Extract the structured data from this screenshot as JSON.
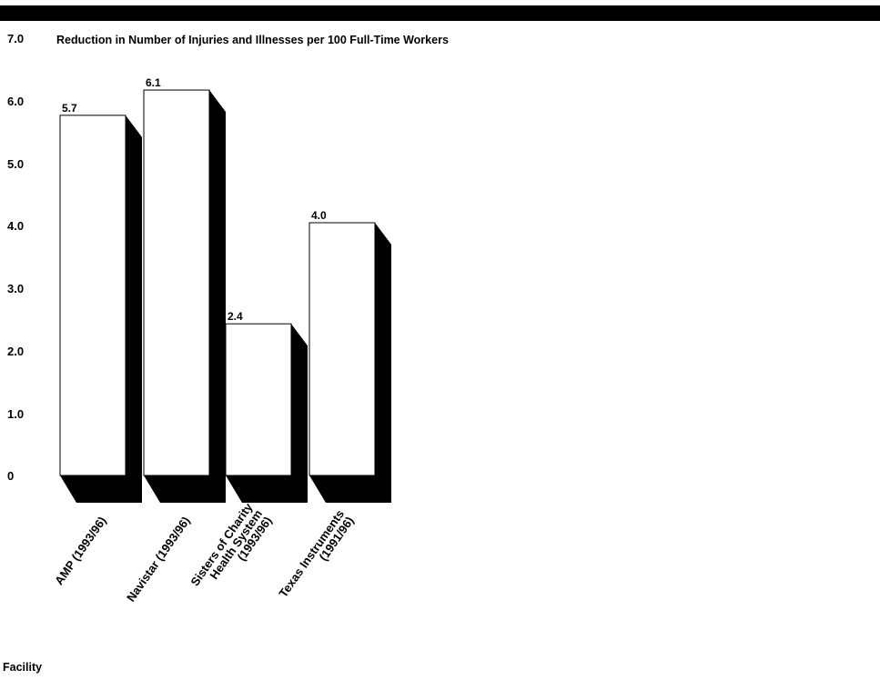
{
  "chart_data": {
    "type": "bar",
    "title": "Reduction in Number of Injuries and Illnesses per 100 Full-Time Workers",
    "xlabel": "Facility",
    "ylabel": "",
    "categories": [
      [
        "AMP (1993/96)"
      ],
      [
        "Navistar (1993/96)"
      ],
      [
        "Sisters of Charity",
        "Health System",
        "(1993/96)"
      ],
      [
        "Texas Instruments",
        "(1991/96)"
      ]
    ],
    "values": [
      5.7,
      6.1,
      2.4,
      4.0
    ],
    "value_labels": [
      "5.7",
      "6.1",
      "2.4",
      "4.0"
    ],
    "ylim": [
      0,
      7.0
    ],
    "yticks": [
      0,
      1.0,
      2.0,
      3.0,
      4.0,
      5.0,
      6.0,
      7.0
    ],
    "ytick_labels": [
      "0",
      "1.0",
      "2.0",
      "3.0",
      "4.0",
      "5.0",
      "6.0",
      "7.0"
    ],
    "grid": false,
    "style": "3d-shadow",
    "colors": {
      "bar_face": "#ffffff",
      "bar_outline": "#000000",
      "bar_shadow": "#000000",
      "top_bar": "#000000"
    }
  }
}
